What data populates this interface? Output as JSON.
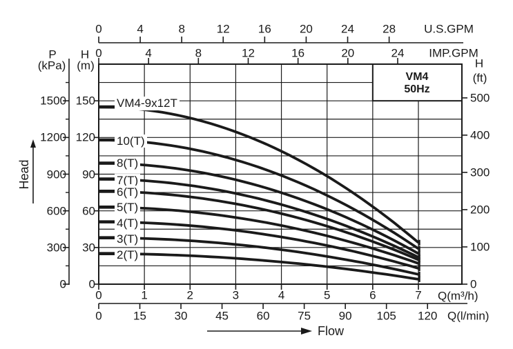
{
  "page": {
    "background": "#ffffff",
    "ink": "#1a1a1a"
  },
  "title_box": {
    "model": "VM4",
    "frequency": "50Hz"
  },
  "labels": {
    "pressure_symbol": "P",
    "pressure_unit": "(kPa)",
    "head_m_symbol": "H",
    "head_m_unit": "(m)",
    "head_ft_symbol": "H",
    "head_ft_unit": "(ft)",
    "us_gpm": "U.S.GPM",
    "imp_gpm": "IMP.GPM",
    "flow_m3h": "Q(m³/h)",
    "flow_lmin": "Q(l/min)",
    "head_axis_word": "Head",
    "flow_axis_word": "Flow"
  },
  "chart_data": {
    "type": "line",
    "title": "VM4 50Hz pump head-flow performance curves",
    "x_primary": {
      "label": "Q(m³/h)",
      "ticks": [
        0,
        1,
        2,
        3,
        4,
        5,
        6,
        7
      ],
      "range": [
        0,
        7.95
      ]
    },
    "x_secondary": [
      {
        "label": "Q(l/min)",
        "ticks": [
          0,
          15,
          30,
          45,
          60,
          75,
          90,
          105,
          120
        ],
        "m3h_per_unit": 0.06
      },
      {
        "label": "U.S.GPM",
        "ticks": [
          0,
          4,
          8,
          12,
          16,
          20,
          24,
          28
        ],
        "m3h_per_unit": 0.22712
      },
      {
        "label": "IMP.GPM",
        "ticks": [
          0,
          4,
          8,
          12,
          16,
          20,
          24
        ],
        "m3h_per_unit": 0.27277
      }
    ],
    "y_primary": {
      "label": "H (m)",
      "ticks": [
        0,
        30,
        60,
        90,
        120,
        150
      ],
      "range": [
        0,
        180
      ],
      "grid_step_m": 15
    },
    "y_secondary": [
      {
        "label": "P (kPa)",
        "ticks": [
          0,
          300,
          600,
          900,
          1200,
          1500
        ],
        "minor_ticks": [
          150,
          450,
          750,
          1050,
          1350,
          1650
        ],
        "kpa_per_m": 10
      },
      {
        "label": "H (ft)",
        "ticks": [
          0,
          100,
          200,
          300,
          400,
          500
        ],
        "m_per_ft": 0.3048
      }
    ],
    "grid": true,
    "legend_position": "labels-on-curves",
    "series": [
      {
        "name": "VM4-9x12T",
        "label_h": 148,
        "points": [
          [
            0,
            145
          ],
          [
            1,
            142.7
          ],
          [
            2,
            135.9
          ],
          [
            3,
            124.6
          ],
          [
            4,
            108.8
          ],
          [
            5,
            88.4
          ],
          [
            6,
            63.4
          ],
          [
            7,
            34
          ]
        ]
      },
      {
        "name": "10(T)",
        "label_h": 117,
        "points": [
          [
            0,
            118
          ],
          [
            1,
            116.2
          ],
          [
            2,
            110.7
          ],
          [
            3,
            101.7
          ],
          [
            4,
            88.9
          ],
          [
            5,
            72.6
          ],
          [
            6,
            52.6
          ],
          [
            7,
            29
          ]
        ]
      },
      {
        "name": "8(T)",
        "label_h": 98.5,
        "points": [
          [
            0,
            99
          ],
          [
            1,
            97.5
          ],
          [
            2,
            93
          ],
          [
            3,
            85.4
          ],
          [
            4,
            74.8
          ],
          [
            5,
            61.2
          ],
          [
            6,
            44.6
          ],
          [
            7,
            25
          ]
        ]
      },
      {
        "name": "7(T)",
        "label_h": 84.5,
        "points": [
          [
            0,
            86
          ],
          [
            1,
            84.7
          ],
          [
            2,
            80.8
          ],
          [
            3,
            74.2
          ],
          [
            4,
            65.1
          ],
          [
            5,
            53.3
          ],
          [
            6,
            39
          ],
          [
            7,
            22
          ]
        ]
      },
      {
        "name": "6(T)",
        "label_h": 75,
        "points": [
          [
            0,
            76
          ],
          [
            1,
            74.9
          ],
          [
            2,
            71.4
          ],
          [
            3,
            65.7
          ],
          [
            4,
            57.7
          ],
          [
            5,
            47.4
          ],
          [
            6,
            34.9
          ],
          [
            7,
            20
          ]
        ]
      },
      {
        "name": "5(T)",
        "label_h": 62.5,
        "points": [
          [
            0,
            63
          ],
          [
            1,
            62.1
          ],
          [
            2,
            59.2
          ],
          [
            3,
            54.6
          ],
          [
            4,
            48
          ],
          [
            5,
            39.5
          ],
          [
            6,
            29
          ],
          [
            7,
            17
          ]
        ]
      },
      {
        "name": "4(T)",
        "label_h": 49.5,
        "points": [
          [
            0,
            51
          ],
          [
            1,
            50.2
          ],
          [
            2,
            47.9
          ],
          [
            3,
            44
          ],
          [
            4,
            38.6
          ],
          [
            5,
            31.6
          ],
          [
            6,
            23
          ],
          [
            7,
            13
          ]
        ]
      },
      {
        "name": "3(T)",
        "label_h": 36.5,
        "points": [
          [
            0,
            38
          ],
          [
            1,
            37.4
          ],
          [
            2,
            35.6
          ],
          [
            3,
            32.5
          ],
          [
            4,
            28.2
          ],
          [
            5,
            22.7
          ],
          [
            6,
            15.9
          ],
          [
            7,
            8
          ]
        ]
      },
      {
        "name": "2(T)",
        "label_h": 23.5,
        "points": [
          [
            0,
            25
          ],
          [
            1,
            24.6
          ],
          [
            2,
            23.3
          ],
          [
            3,
            21.1
          ],
          [
            4,
            18.1
          ],
          [
            5,
            14.3
          ],
          [
            6,
            9.6
          ],
          [
            7,
            4
          ]
        ]
      }
    ]
  }
}
